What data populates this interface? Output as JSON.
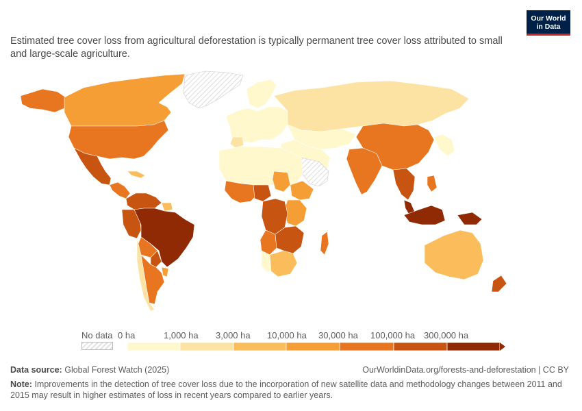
{
  "logo": {
    "line1": "Our World",
    "line2": "in Data"
  },
  "subtitle": "Estimated tree cover loss from agricultural deforestation is typically permanent tree cover loss attributed to small and large-scale agriculture.",
  "legend": {
    "no_data_label": "No data",
    "thresholds": [
      "0 ha",
      "1,000 ha",
      "3,000 ha",
      "10,000 ha",
      "30,000 ha",
      "100,000 ha",
      "300,000 ha"
    ],
    "colors": [
      "#fff8cd",
      "#fde3a3",
      "#fbbd5c",
      "#f59e35",
      "#e8751f",
      "#c85411",
      "#8f2a04"
    ]
  },
  "footer": {
    "source_label": "Data source:",
    "source_value": "Global Forest Watch (2025)",
    "credit": "OurWorldinData.org/forests-and-deforestation | CC BY",
    "note_label": "Note:",
    "note_text": "Improvements in the detection of tree cover loss due to the incorporation of new satellite data and methodology changes between 2011 and 2015 may result in higher estimates of loss in recent years compared to earlier years."
  },
  "colors": {
    "no_data_hatch": "#e2e2e2",
    "country_border": "#ffffff",
    "brand_navy": "#002147",
    "brand_red": "#ce261e"
  }
}
